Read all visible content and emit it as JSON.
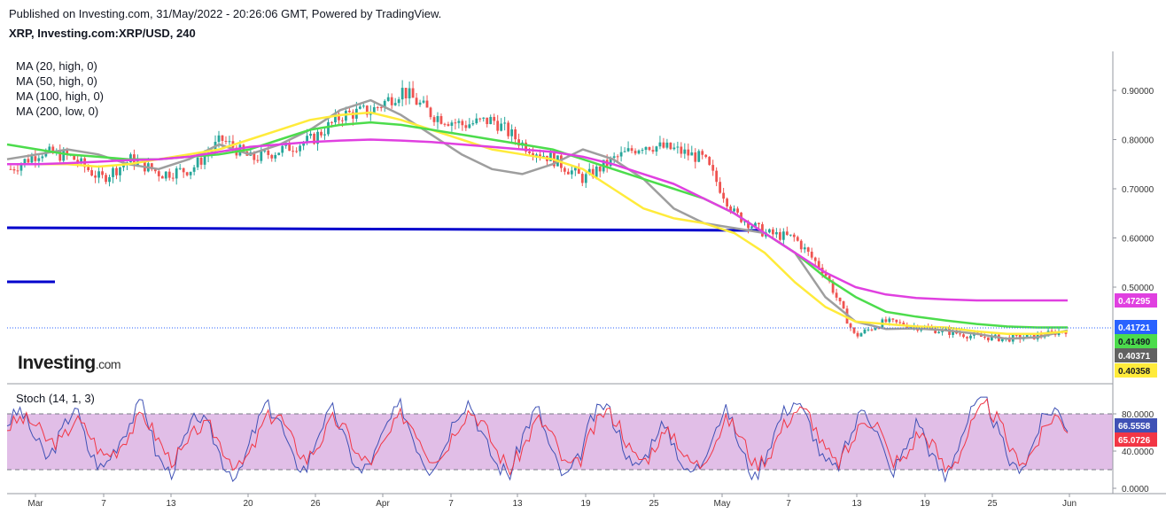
{
  "header": {
    "published": "Published on Investing.com, 31/May/2022 - 20:26:06 GMT, Powered by TradingView.",
    "title": "XRP, Investing.com:XRP/USD, 240"
  },
  "logo": {
    "main": "Investing",
    "suffix": ".com"
  },
  "chart_data": [
    {
      "type": "candlestick",
      "title": "XRP, Investing.com:XRP/USD, 240",
      "x_ticks": [
        "Mar",
        "7",
        "13",
        "20",
        "26",
        "Apr",
        "7",
        "13",
        "19",
        "25",
        "May",
        "7",
        "13",
        "19",
        "25",
        "Jun"
      ],
      "y_ticks": [
        "0.90000",
        "0.80000",
        "0.70000",
        "0.60000",
        "0.50000"
      ],
      "ylim": [
        0.37,
        0.99
      ],
      "legend": [
        "MA (20, high, 0)",
        "MA (50, high, 0)",
        "MA (100, high, 0)",
        "MA (200, low, 0)"
      ],
      "series_colors": {
        "ma20": "#9e9e9e",
        "ma50": "#ffeb3b",
        "ma100": "#4cdc4c",
        "ma200": "#e040e0",
        "up": "#26a69a",
        "down": "#ef5350",
        "level": "#0000cc"
      },
      "ma_series": [
        {
          "name": "MA (20, high, 0)",
          "values": [
            0.76,
            0.77,
            0.78,
            0.77,
            0.75,
            0.74,
            0.76,
            0.79,
            0.77,
            0.79,
            0.82,
            0.86,
            0.88,
            0.85,
            0.81,
            0.77,
            0.74,
            0.73,
            0.75,
            0.78,
            0.76,
            0.72,
            0.66,
            0.63,
            0.62,
            0.61,
            0.57,
            0.48,
            0.43,
            0.415,
            0.416,
            0.412,
            0.405,
            0.395,
            0.398,
            0.412
          ]
        },
        {
          "name": "MA (50, high, 0)",
          "values": [
            0.75,
            0.75,
            0.75,
            0.745,
            0.75,
            0.76,
            0.77,
            0.78,
            0.8,
            0.82,
            0.84,
            0.85,
            0.855,
            0.84,
            0.82,
            0.8,
            0.78,
            0.77,
            0.76,
            0.74,
            0.7,
            0.66,
            0.64,
            0.63,
            0.61,
            0.57,
            0.51,
            0.46,
            0.43,
            0.425,
            0.42,
            0.418,
            0.41,
            0.405,
            0.405,
            0.41
          ]
        },
        {
          "name": "MA (100, high, 0)",
          "values": [
            0.79,
            0.78,
            0.77,
            0.765,
            0.76,
            0.76,
            0.765,
            0.77,
            0.78,
            0.8,
            0.82,
            0.83,
            0.835,
            0.83,
            0.82,
            0.81,
            0.8,
            0.79,
            0.78,
            0.76,
            0.74,
            0.72,
            0.7,
            0.68,
            0.65,
            0.61,
            0.57,
            0.52,
            0.48,
            0.45,
            0.44,
            0.432,
            0.425,
            0.42,
            0.418,
            0.418
          ]
        },
        {
          "name": "MA (200, low, 0)",
          "values": [
            0.75,
            0.75,
            0.752,
            0.755,
            0.758,
            0.76,
            0.765,
            0.775,
            0.785,
            0.79,
            0.795,
            0.798,
            0.8,
            0.798,
            0.795,
            0.79,
            0.785,
            0.78,
            0.775,
            0.765,
            0.75,
            0.73,
            0.71,
            0.68,
            0.65,
            0.61,
            0.57,
            0.53,
            0.5,
            0.485,
            0.478,
            0.475,
            0.473,
            0.473,
            0.473,
            0.473
          ]
        }
      ],
      "price_path": [
        0.74,
        0.775,
        0.765,
        0.72,
        0.76,
        0.73,
        0.74,
        0.8,
        0.76,
        0.78,
        0.8,
        0.85,
        0.86,
        0.9,
        0.85,
        0.83,
        0.84,
        0.79,
        0.76,
        0.72,
        0.76,
        0.79,
        0.78,
        0.76,
        0.65,
        0.61,
        0.6,
        0.53,
        0.4,
        0.43,
        0.42,
        0.41,
        0.4,
        0.395,
        0.4,
        0.412
      ],
      "horizontal_level": {
        "value": 0.6217
      },
      "badges": [
        {
          "value": "0.47295",
          "color": "#e040e0",
          "text_color": "#ffffff"
        },
        {
          "value": "0.41721",
          "color": "#2962ff",
          "text_color": "#ffffff"
        },
        {
          "value": "0.41490",
          "color": "#4cdc4c",
          "text_color": "#131722"
        },
        {
          "value": "0.40371",
          "color": "#616161",
          "text_color": "#ffffff"
        },
        {
          "value": "0.40358",
          "color": "#ffeb3b",
          "text_color": "#131722"
        }
      ]
    },
    {
      "type": "line",
      "title": "Stoch (14, 1, 3)",
      "y_ticks": [
        "80.0000",
        "40.0000",
        "0.0000"
      ],
      "ylim": [
        0,
        100
      ],
      "bands": {
        "upper": 80,
        "lower": 20
      },
      "series_colors": {
        "k": "#3f51b5",
        "d": "#f23645",
        "band": "#e1bee7"
      },
      "k_values": [
        70,
        85,
        55,
        30,
        60,
        90,
        40,
        20,
        45,
        70,
        95,
        35,
        15,
        50,
        80,
        60,
        25,
        10,
        55,
        90,
        75,
        30,
        20,
        65,
        85,
        45,
        15,
        35,
        70,
        90,
        50,
        20,
        40,
        80,
        95,
        55,
        25,
        15,
        60,
        88,
        40,
        10,
        30,
        75,
        92,
        60,
        20,
        35,
        70,
        50,
        15,
        25,
        65,
        85,
        40,
        10,
        45,
        80,
        95,
        70,
        30,
        20,
        55,
        90,
        60,
        15,
        40,
        75,
        35,
        10,
        50,
        85,
        95,
        55,
        20,
        30,
        70,
        88,
        66.5558
      ],
      "d_values": [
        65,
        75,
        70,
        50,
        50,
        75,
        60,
        35,
        40,
        60,
        80,
        55,
        30,
        40,
        65,
        65,
        40,
        20,
        40,
        75,
        80,
        50,
        30,
        50,
        75,
        60,
        30,
        30,
        55,
        80,
        65,
        35,
        35,
        65,
        85,
        70,
        40,
        20,
        45,
        75,
        60,
        25,
        25,
        60,
        85,
        70,
        35,
        30,
        55,
        60,
        30,
        25,
        50,
        75,
        55,
        25,
        35,
        65,
        85,
        80,
        45,
        25,
        45,
        75,
        70,
        30,
        30,
        60,
        50,
        20,
        35,
        70,
        90,
        70,
        35,
        30,
        55,
        80,
        65.0726
      ],
      "badges": [
        {
          "value": "66.5558",
          "color": "#3f51b5",
          "text_color": "#ffffff"
        },
        {
          "value": "65.0726",
          "color": "#f23645",
          "text_color": "#ffffff"
        }
      ]
    }
  ],
  "legend_lines": [
    "MA (20, high, 0)",
    "MA (50, high, 0)",
    "MA (100, high, 0)",
    "MA (200, low, 0)"
  ],
  "stoch_label": "Stoch (14, 1, 3)"
}
